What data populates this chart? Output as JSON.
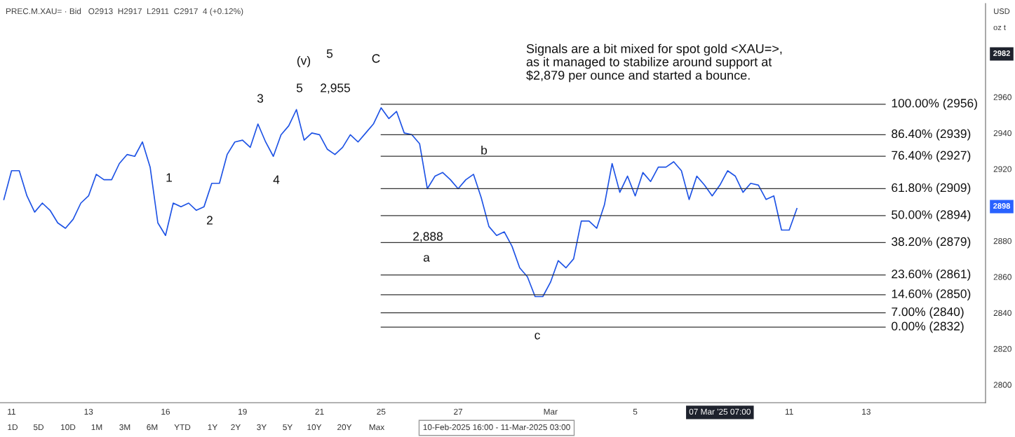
{
  "chart_data": {
    "type": "line",
    "title": "PREC.M.XAU= · Bid   O2913  H2917  L2911  C2917  4 (+0.12%)",
    "categories": [
      null,
      "11",
      null,
      null,
      null,
      null,
      null,
      null,
      null,
      null,
      null,
      "13",
      null,
      null,
      null,
      null,
      null,
      null,
      null,
      null,
      null,
      "16",
      null,
      null,
      null,
      null,
      null,
      null,
      null,
      null,
      null,
      "19",
      null,
      null,
      null,
      null,
      null,
      null,
      null,
      null,
      null,
      "21",
      null,
      null,
      null,
      null,
      null,
      null,
      null,
      "25",
      null,
      null,
      null,
      null,
      null,
      null,
      null,
      null,
      null,
      "27",
      null,
      null,
      null,
      null,
      null,
      null,
      null,
      null,
      null,
      null,
      null,
      "Mar",
      null,
      null,
      null,
      null,
      null,
      null,
      null,
      null,
      null,
      null,
      "5",
      null,
      null,
      null,
      null,
      null,
      null,
      null,
      null,
      null,
      null,
      "07 Mar '25 07:00",
      null,
      null,
      null,
      null,
      null,
      null,
      null,
      null,
      "11",
      null,
      null,
      null,
      null,
      null,
      null,
      null,
      null,
      null,
      "13",
      null,
      null,
      null,
      null,
      null,
      null,
      null,
      null,
      null,
      null,
      null,
      null,
      null,
      null,
      null
    ],
    "series": [
      {
        "color": "#1e53e5",
        "values": [
          2903,
          2919,
          2919,
          2905,
          2896,
          2901,
          2897,
          2890,
          2887,
          2892,
          2901,
          2905,
          2917,
          2914,
          2914,
          2923,
          2928,
          2927,
          2935,
          2921,
          2890,
          2883,
          2901,
          2899,
          2901,
          2897,
          2899,
          2912,
          2912,
          2928,
          2935,
          2936,
          2932,
          2945,
          2935,
          2927,
          2939,
          2944,
          2953,
          2936,
          2940,
          2939,
          2931,
          2928,
          2932,
          2939,
          2935,
          2940,
          2945,
          2954,
          2948,
          2952,
          2940,
          2939,
          2934,
          2909,
          2916,
          2918,
          2914,
          2909,
          2914,
          2917,
          2904,
          2888,
          2883,
          2885,
          2877,
          2865,
          2860,
          2849,
          2849,
          2857,
          2869,
          2865,
          2870,
          2891,
          2891,
          2887,
          2900,
          2923,
          2907,
          2916,
          2905,
          2918,
          2913,
          2921,
          2921,
          2924,
          2919,
          2903,
          2916,
          2911,
          2905,
          2911,
          2919,
          2916,
          2907,
          2912,
          2911,
          2903,
          2905,
          2886,
          2886,
          2898,
          null,
          null,
          null,
          null,
          null,
          null,
          null,
          null,
          null,
          null,
          null,
          null,
          null,
          null,
          null,
          null,
          null,
          null,
          null,
          null,
          null,
          null,
          null,
          null
        ]
      }
    ],
    "ylim": [
      2790,
      3012
    ],
    "yticks": [
      2800,
      2820,
      2840,
      2860,
      2880,
      2920,
      2940,
      2960
    ],
    "ref_lines": [
      {
        "axis": "y",
        "value": 2956,
        "label": "100.00% (2956)",
        "color": "#333333"
      },
      {
        "axis": "y",
        "value": 2939,
        "label": "86.40% (2939)",
        "color": "#333333"
      },
      {
        "axis": "y",
        "value": 2927,
        "label": "76.40% (2927)",
        "color": "#333333"
      },
      {
        "axis": "y",
        "value": 2909,
        "label": "61.80% (2909)",
        "color": "#333333"
      },
      {
        "axis": "y",
        "value": 2894,
        "label": "50.00% (2894)",
        "color": "#333333"
      },
      {
        "axis": "y",
        "value": 2879,
        "label": "38.20% (2879)",
        "color": "#333333"
      },
      {
        "axis": "y",
        "value": 2861,
        "label": "23.60% (2861)",
        "color": "#333333"
      },
      {
        "axis": "y",
        "value": 2850,
        "label": "14.60% (2850)",
        "color": "#333333"
      },
      {
        "axis": "y",
        "value": 2840,
        "label": "7.00% (2840)",
        "color": "#333333"
      },
      {
        "axis": "y",
        "value": 2832,
        "label": "0.00% (2832)",
        "color": "#333333"
      }
    ],
    "annotations": [
      "(v)",
      "5",
      "C",
      "3",
      "5",
      "2,955",
      "1",
      "4",
      "2",
      "2,888",
      "a",
      "b",
      "c",
      "Signals are a bit mixed for spot gold <XAU=>,\nas it managed to stabilize around support at\n$2,879 per ounce and started a bounce.",
      "2982",
      "2898",
      "USD",
      "oz t",
      "1D",
      "5D",
      "10D",
      "1M",
      "3M",
      "6M",
      "YTD",
      "1Y",
      "2Y",
      "3Y",
      "5Y",
      "10Y",
      "20Y",
      "Max",
      "10-Feb-2025 16:00 - 11-Mar-2025 03:00"
    ],
    "grid": false,
    "legend": false,
    "marker": "none",
    "line_style": "solid"
  }
}
